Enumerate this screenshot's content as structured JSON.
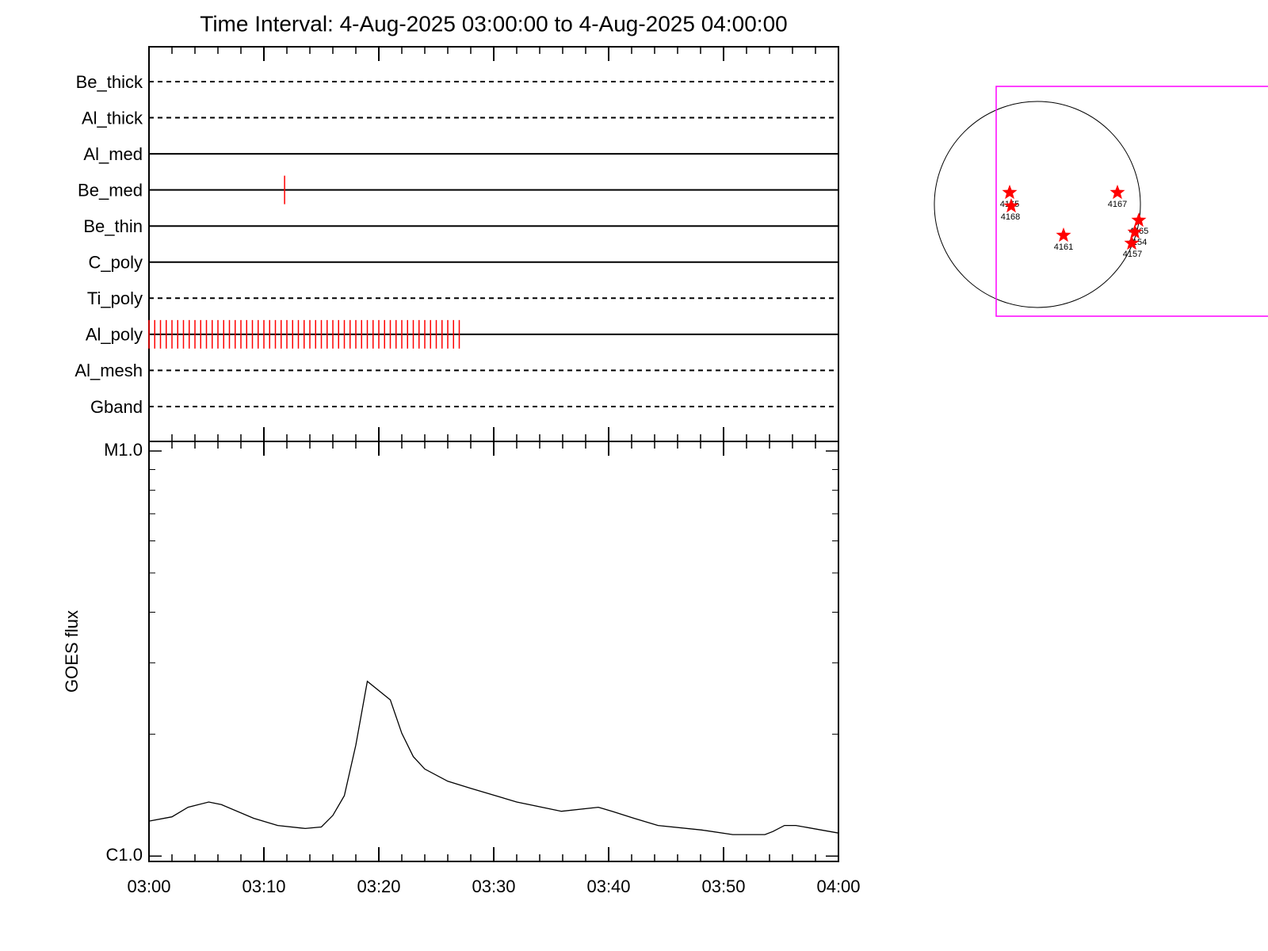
{
  "title": "Time Interval:  4-Aug-2025 03:00:00 to  4-Aug-2025 04:00:00",
  "chart_data": [
    {
      "type": "timeline",
      "xlim": [
        0,
        60
      ],
      "event_color": "#ff0000",
      "rows": [
        {
          "name": "Be_thick",
          "style": "dashed",
          "events": []
        },
        {
          "name": "Al_thick",
          "style": "dashed",
          "events": []
        },
        {
          "name": "Al_med",
          "style": "solid",
          "events": []
        },
        {
          "name": "Be_med",
          "style": "solid",
          "events": [
            11.8
          ]
        },
        {
          "name": "Be_thin",
          "style": "solid",
          "events": []
        },
        {
          "name": "C_poly",
          "style": "solid",
          "events": []
        },
        {
          "name": "Ti_poly",
          "style": "dashed",
          "events": []
        },
        {
          "name": "Al_poly",
          "style": "solid",
          "events": [
            0,
            0.5,
            1,
            1.5,
            2,
            2.5,
            3,
            3.5,
            4,
            4.5,
            5,
            5.5,
            6,
            6.5,
            7,
            7.5,
            8,
            8.5,
            9,
            9.5,
            10,
            10.5,
            11,
            11.5,
            12,
            12.5,
            13,
            13.5,
            14,
            14.5,
            15,
            15.5,
            16,
            16.5,
            17,
            17.5,
            18,
            18.5,
            19,
            19.5,
            20,
            20.5,
            21,
            21.5,
            22,
            22.5,
            23,
            23.5,
            24,
            24.5,
            25,
            25.5,
            26,
            26.5,
            27
          ]
        },
        {
          "name": "Al_mesh",
          "style": "dashed",
          "events": []
        },
        {
          "name": "Gband",
          "style": "dashed",
          "events": []
        }
      ]
    },
    {
      "type": "line",
      "ylabel": "GOES flux",
      "log_y": true,
      "color": "#000000",
      "xlim": [
        0,
        60
      ],
      "xticks": [
        {
          "value": 0,
          "label": "03:00"
        },
        {
          "value": 10,
          "label": "03:10"
        },
        {
          "value": 20,
          "label": "03:20"
        },
        {
          "value": 30,
          "label": "03:30"
        },
        {
          "value": 40,
          "label": "03:40"
        },
        {
          "value": 50,
          "label": "03:50"
        },
        {
          "value": 60,
          "label": "04:00"
        }
      ],
      "xminor_ticks": [
        2,
        4,
        6,
        8,
        12,
        14,
        16,
        18,
        22,
        24,
        26,
        28,
        32,
        34,
        36,
        38,
        42,
        44,
        46,
        48,
        52,
        54,
        56,
        58
      ],
      "ylim": [
        9.7e-07,
        1.056e-05
      ],
      "yticks": [
        {
          "value": 1e-06,
          "label": "C1.0"
        },
        {
          "value": 1e-05,
          "label": "M1.0"
        }
      ],
      "yminor_ticks": [
        2e-06,
        3e-06,
        4e-06,
        5e-06,
        6e-06,
        7e-06,
        8e-06,
        9e-06
      ],
      "x": [
        0,
        2,
        3.4,
        5.2,
        6.3,
        9.1,
        11.2,
        13.6,
        15,
        16,
        17,
        18,
        19,
        21,
        22,
        23,
        24,
        26,
        28,
        32,
        35.9,
        39.1,
        40.3,
        42.2,
        44.3,
        48.1,
        50.8,
        53.6,
        54.3,
        55.3,
        56.3,
        60
      ],
      "values": [
        1.22e-06,
        1.25e-06,
        1.32e-06,
        1.36e-06,
        1.34e-06,
        1.24e-06,
        1.19e-06,
        1.17e-06,
        1.18e-06,
        1.26e-06,
        1.41e-06,
        1.88e-06,
        2.7e-06,
        2.43e-06,
        2.01e-06,
        1.76e-06,
        1.64e-06,
        1.53e-06,
        1.47e-06,
        1.36e-06,
        1.29e-06,
        1.32e-06,
        1.29e-06,
        1.24e-06,
        1.19e-06,
        1.16e-06,
        1.13e-06,
        1.13e-06,
        1.15e-06,
        1.19e-06,
        1.19e-06,
        1.14e-06
      ]
    }
  ],
  "disk": {
    "regions": [
      "4165",
      "4168",
      "4167",
      "4161",
      "4165",
      "4154",
      "4157"
    ]
  }
}
